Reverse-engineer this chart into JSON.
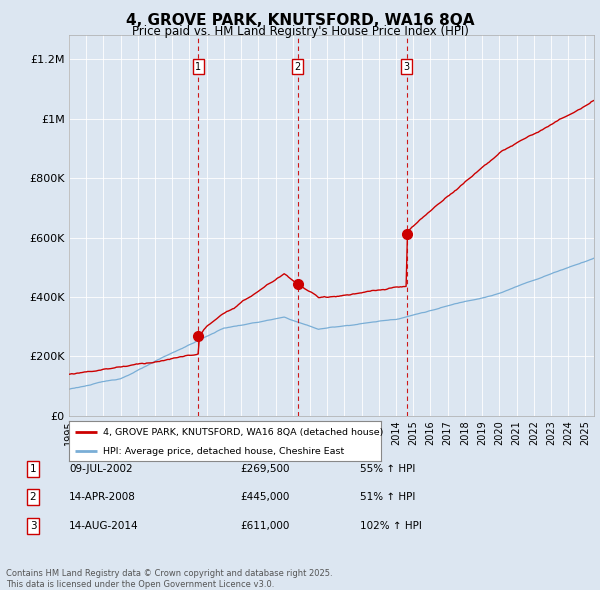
{
  "title": "4, GROVE PARK, KNUTSFORD, WA16 8QA",
  "subtitle": "Price paid vs. HM Land Registry's House Price Index (HPI)",
  "background_color": "#dce6f1",
  "plot_bg_color": "#dce6f1",
  "red_line_color": "#cc0000",
  "blue_line_color": "#7aaed6",
  "xlim": [
    1995,
    2025.5
  ],
  "ylim": [
    0,
    1280000
  ],
  "yticks": [
    0,
    200000,
    400000,
    600000,
    800000,
    1000000,
    1200000
  ],
  "ytick_labels": [
    "£0",
    "£200K",
    "£400K",
    "£600K",
    "£800K",
    "£1M",
    "£1.2M"
  ],
  "transactions": [
    {
      "num": 1,
      "date": "09-JUL-2002",
      "year": 2002.52,
      "price": 269500,
      "label": "55% ↑ HPI"
    },
    {
      "num": 2,
      "date": "14-APR-2008",
      "year": 2008.29,
      "price": 445000,
      "label": "51% ↑ HPI"
    },
    {
      "num": 3,
      "date": "14-AUG-2014",
      "year": 2014.62,
      "price": 611000,
      "label": "102% ↑ HPI"
    }
  ],
  "legend_property": "4, GROVE PARK, KNUTSFORD, WA16 8QA (detached house)",
  "legend_hpi": "HPI: Average price, detached house, Cheshire East",
  "footnote": "Contains HM Land Registry data © Crown copyright and database right 2025.\nThis data is licensed under the Open Government Licence v3.0.",
  "transaction_box_color": "#cc0000",
  "vline_color": "#cc0000",
  "grid_color": "#ffffff"
}
